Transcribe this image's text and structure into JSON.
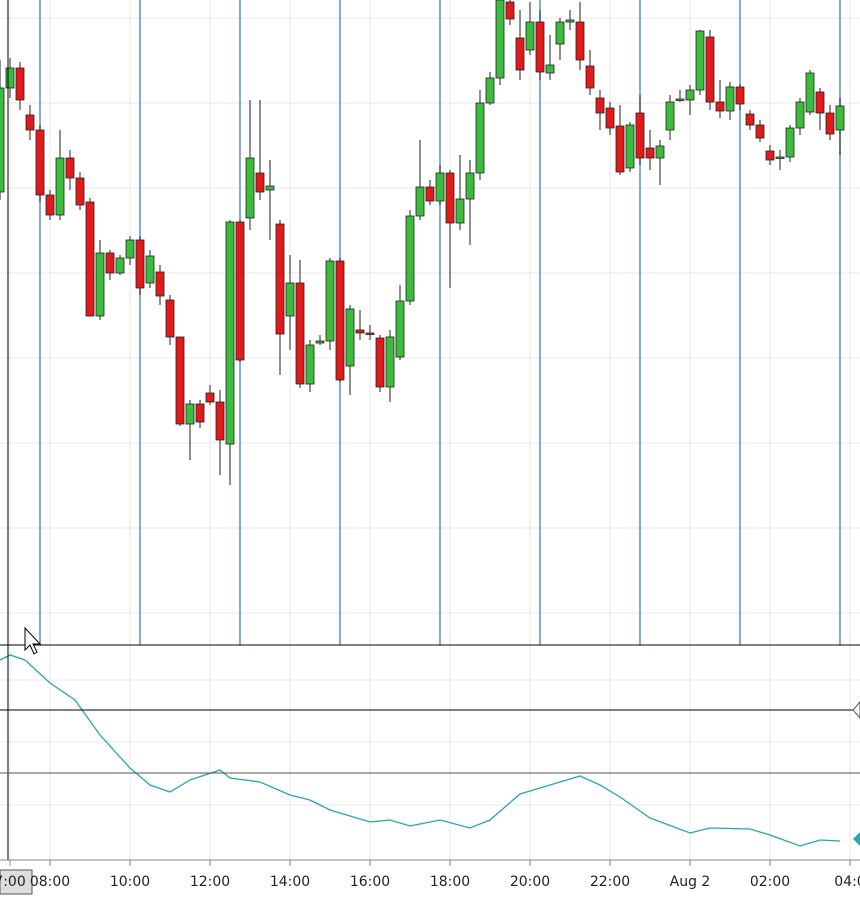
{
  "chart_data": [
    {
      "type": "candlestick",
      "x": [
        -0.25,
        0,
        0.25,
        0.5,
        0.75,
        1,
        1.25,
        1.5,
        1.75,
        2,
        2.25,
        2.5,
        2.75,
        3,
        3.25,
        3.5,
        3.75,
        4,
        4.25,
        4.5,
        4.75,
        5,
        5.25,
        5.5,
        5.75,
        6,
        6.25,
        6.5,
        6.75,
        7,
        7.25,
        7.5,
        7.75,
        8,
        8.25,
        8.5,
        8.75,
        9,
        9.25,
        9.5,
        9.75,
        10,
        10.25,
        10.5,
        10.75,
        11,
        11.25,
        11.5,
        11.75,
        12,
        12.25,
        12.5,
        12.75,
        13,
        13.25,
        13.5,
        13.75,
        14,
        14.25,
        14.5,
        14.75,
        15,
        15.25,
        15.5,
        15.75,
        16,
        16.25,
        16.5,
        16.75,
        17,
        17.25,
        17.5,
        17.75,
        18,
        18.25,
        18.5,
        18.75,
        19,
        19.25,
        19.5,
        19.75,
        20,
        20.25,
        20.5,
        20.75
      ],
      "open": [
        458,
        562,
        582,
        535,
        520,
        455,
        435,
        492,
        472,
        448,
        334,
        397,
        377,
        392,
        410,
        367,
        378,
        350,
        313,
        226,
        246,
        257,
        248,
        206,
        428,
        432,
        477,
        460,
        426,
        334,
        367,
        266,
        307,
        309,
        389,
        284,
        320,
        317,
        312,
        263,
        293,
        349,
        434,
        463,
        449,
        477,
        427,
        451,
        477,
        547,
        572,
        648,
        612,
        600,
        628,
        577,
        606,
        628,
        628,
        584,
        552,
        542,
        524,
        482,
        537,
        502,
        492,
        520,
        550,
        550,
        560,
        613,
        548,
        539,
        563,
        536,
        525,
        499,
        492,
        493,
        522,
        538,
        558,
        537,
        520
      ],
      "high": [
        590,
        592,
        588,
        545,
        525,
        460,
        520,
        500,
        478,
        452,
        410,
        400,
        395,
        414,
        414,
        400,
        385,
        355,
        313,
        250,
        250,
        265,
        260,
        430,
        430,
        550,
        550,
        490,
        430,
        395,
        390,
        310,
        315,
        392,
        392,
        345,
        340,
        325,
        315,
        320,
        365,
        440,
        510,
        470,
        485,
        480,
        495,
        490,
        560,
        578,
        655,
        655,
        640,
        648,
        640,
        615,
        632,
        640,
        648,
        600,
        560,
        548,
        545,
        528,
        555,
        520,
        510,
        555,
        560,
        565,
        620,
        620,
        570,
        568,
        566,
        540,
        530,
        505,
        500,
        525,
        552,
        580,
        562,
        545,
        552
      ],
      "low": [
        450,
        552,
        540,
        510,
        448,
        430,
        430,
        460,
        440,
        334,
        330,
        370,
        375,
        385,
        355,
        362,
        345,
        305,
        224,
        190,
        222,
        245,
        175,
        165,
        288,
        420,
        450,
        410,
        275,
        300,
        262,
        258,
        305,
        300,
        268,
        255,
        310,
        310,
        258,
        248,
        290,
        345,
        430,
        445,
        445,
        362,
        420,
        405,
        470,
        545,
        565,
        625,
        570,
        595,
        570,
        570,
        590,
        620,
        580,
        555,
        520,
        515,
        475,
        478,
        485,
        480,
        465,
        510,
        548,
        535,
        555,
        540,
        532,
        530,
        540,
        520,
        508,
        485,
        480,
        488,
        515,
        535,
        520,
        510,
        495
      ],
      "close": [
        562,
        582,
        550,
        520,
        455,
        435,
        492,
        472,
        445,
        334,
        397,
        377,
        392,
        410,
        362,
        394,
        354,
        313,
        226,
        246,
        228,
        248,
        210,
        428,
        290,
        492,
        458,
        464,
        316,
        367,
        266,
        305,
        309,
        389,
        270,
        341,
        317,
        316,
        263,
        313,
        349,
        434,
        463,
        449,
        477,
        427,
        451,
        477,
        547,
        572,
        650,
        631,
        580,
        628,
        578,
        585,
        628,
        630,
        590,
        562,
        537,
        522,
        478,
        525,
        492,
        492,
        504,
        548,
        551,
        560,
        619,
        548,
        539,
        563,
        546,
        525,
        512,
        490,
        493,
        522,
        548,
        577,
        537,
        516,
        544
      ],
      "up_color": "#3dbb3d",
      "down_color": "#e31a1a",
      "xlim": [
        -0.25,
        21.25
      ],
      "ylim": [
        0,
        650
      ],
      "xticks": [
        {
          "value": 0,
          "label": "7:00"
        },
        {
          "value": 1,
          "label": "08:00"
        },
        {
          "value": 3,
          "label": "10:00"
        },
        {
          "value": 5,
          "label": "12:00"
        },
        {
          "value": 7,
          "label": "14:00"
        },
        {
          "value": 9,
          "label": "16:00"
        },
        {
          "value": 11,
          "label": "18:00"
        },
        {
          "value": 13,
          "label": "20:00"
        },
        {
          "value": 15,
          "label": "22:00"
        },
        {
          "value": 17,
          "label": "Aug 2"
        },
        {
          "value": 19,
          "label": "02:00"
        },
        {
          "value": 21,
          "label": "04:0"
        }
      ],
      "grid": true
    },
    {
      "type": "line",
      "x": [
        -0.25,
        0,
        0.375,
        1,
        1.625,
        2.25,
        3,
        3.5,
        4,
        4.5,
        5.25,
        5.5,
        6.25,
        7,
        7.5,
        8,
        9,
        9.5,
        10,
        10.75,
        11.5,
        12,
        12.75,
        13.5,
        14.25,
        14.75,
        15.25,
        16,
        17,
        17.5,
        18.5,
        19,
        19.75,
        20.25,
        20.75
      ],
      "values": [
        200,
        205,
        200,
        177,
        160,
        125,
        92,
        75,
        68,
        80,
        90,
        82,
        78,
        65,
        60,
        50,
        38,
        40,
        34,
        40,
        32,
        40,
        66,
        75,
        84,
        75,
        63,
        42,
        27,
        32,
        31,
        25,
        14,
        20,
        19
      ],
      "color": "#2aa5b0",
      "xlim": [
        -0.25,
        21.25
      ],
      "ylim": [
        0,
        215
      ]
    }
  ]
}
